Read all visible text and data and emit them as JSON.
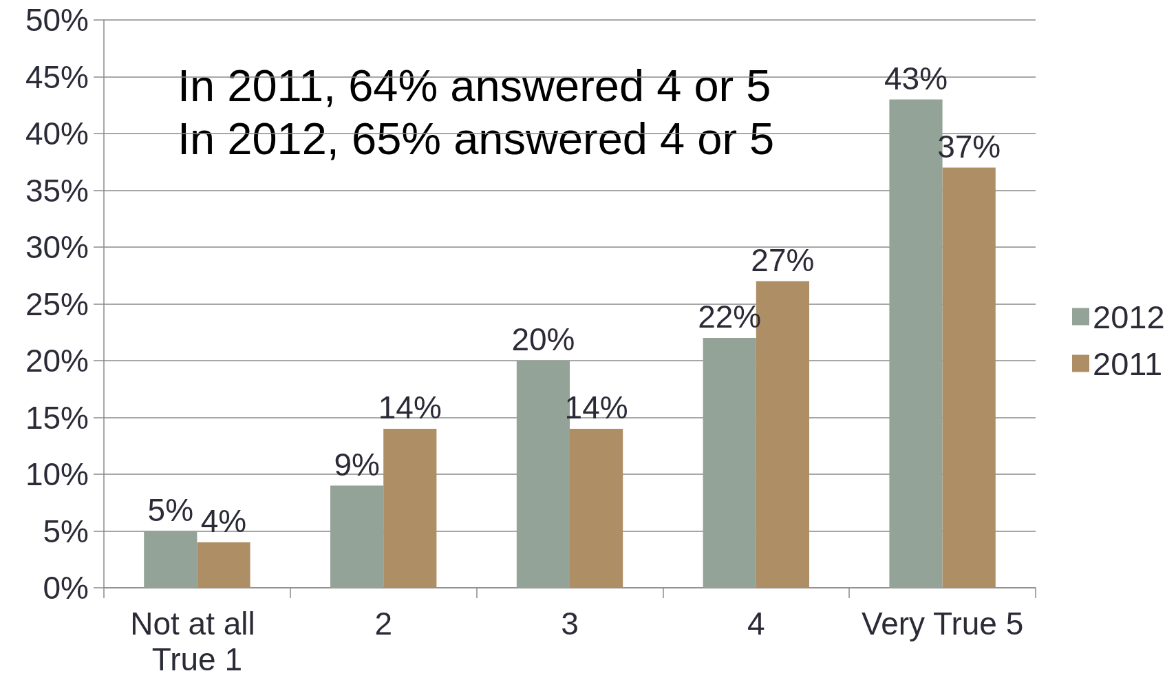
{
  "chart_data": {
    "type": "bar",
    "categories": [
      "Not at all True 1",
      "2",
      "3",
      "4",
      "Very True 5"
    ],
    "series": [
      {
        "name": "2012",
        "color": "#93a398",
        "values": [
          5,
          9,
          20,
          22,
          43
        ],
        "value_labels": [
          "5%",
          "9%",
          "20%",
          "22%",
          "43%"
        ]
      },
      {
        "name": "2011",
        "color": "#ad8e65",
        "values": [
          4,
          14,
          14,
          27,
          37
        ],
        "value_labels": [
          "4%",
          "14%",
          "14%",
          "27%",
          "37%"
        ]
      }
    ],
    "ylim": [
      0,
      50
    ],
    "yticks": [
      {
        "value": 0,
        "label": "0%"
      },
      {
        "value": 5,
        "label": "5%"
      },
      {
        "value": 10,
        "label": "10%"
      },
      {
        "value": 15,
        "label": "15%"
      },
      {
        "value": 20,
        "label": "20%"
      },
      {
        "value": 25,
        "label": "25%"
      },
      {
        "value": 30,
        "label": "30%"
      },
      {
        "value": 35,
        "label": "35%"
      },
      {
        "value": 40,
        "label": "40%"
      },
      {
        "value": 45,
        "label": "45%"
      },
      {
        "value": 50,
        "label": "50%"
      }
    ],
    "grid": "y",
    "legend": "right",
    "annotations": [
      "In 2011, 64% answered 4 or 5",
      "In 2012, 65% answered 4 or 5"
    ]
  }
}
